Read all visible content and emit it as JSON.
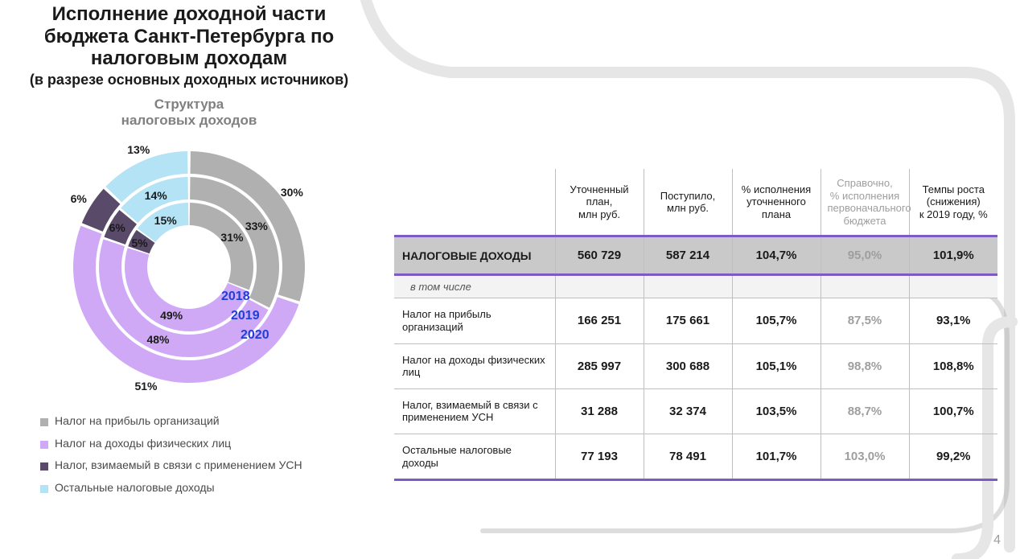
{
  "page_number": "4",
  "colors": {
    "profit": "#b0b0b0",
    "ndfl": "#cfa9f5",
    "usn": "#5a4a6a",
    "other": "#b3e3f5",
    "ring_label": "#1f3fd6",
    "bg_curve_light": "#e6e6e6",
    "bg_curve_dark": "#9e9e9e",
    "purple_accent": "#7c5cc4",
    "text_faded": "#9e9e9e"
  },
  "titles": {
    "main": "Исполнение доходной части бюджета Санкт-Петербурга по налоговым доходам",
    "sub": "(в разрезе основных доходных источников)",
    "chart": "Структура\nналоговых доходов"
  },
  "donut": {
    "type": "nested-donut",
    "rings": [
      {
        "year": "2018",
        "radius": 80,
        "thickness": 28,
        "segments": [
          {
            "key": "profit",
            "value": 31,
            "label": "31%"
          },
          {
            "key": "ndfl",
            "value": 49,
            "label": "49%"
          },
          {
            "key": "usn",
            "value": 5,
            "label": "5%"
          },
          {
            "key": "other",
            "value": 15,
            "label": "15%"
          }
        ]
      },
      {
        "year": "2019",
        "radius": 112,
        "thickness": 28,
        "segments": [
          {
            "key": "profit",
            "value": 33,
            "label": "33%"
          },
          {
            "key": "ndfl",
            "value": 48,
            "label": "48%"
          },
          {
            "key": "usn",
            "value": 6,
            "label": "6%"
          },
          {
            "key": "other",
            "value": 14,
            "label": "14%"
          }
        ]
      },
      {
        "year": "2020",
        "radius": 144,
        "thickness": 28,
        "segments": [
          {
            "key": "profit",
            "value": 30,
            "label": "30%"
          },
          {
            "key": "ndfl",
            "value": 51,
            "label": "51%"
          },
          {
            "key": "usn",
            "value": 6,
            "label": "6%"
          },
          {
            "key": "other",
            "value": 13,
            "label": "13%"
          }
        ]
      }
    ],
    "legend": [
      {
        "key": "profit",
        "label": "Налог на прибыль организаций"
      },
      {
        "key": "ndfl",
        "label": "Налог на доходы физических лиц"
      },
      {
        "key": "usn",
        "label": "Налог, взимаемый в связи с применением УСН"
      },
      {
        "key": "other",
        "label": "Остальные налоговые доходы"
      }
    ],
    "gap_deg": 1.5,
    "start_angle_deg": -90
  },
  "table": {
    "columns": [
      {
        "key": "name",
        "label": ""
      },
      {
        "key": "plan",
        "label": "Уточненный план,\nмлн руб."
      },
      {
        "key": "actual",
        "label": "Поступило,\nмлн руб."
      },
      {
        "key": "exec",
        "label": "% исполнения уточненного плана"
      },
      {
        "key": "ref",
        "label": "Справочно,\n% исполнения первоначального бюджета",
        "faded": true
      },
      {
        "key": "growth",
        "label": "Темпы роста (снижения)\nк 2019 году, %"
      }
    ],
    "total_row": {
      "name": "НАЛОГОВЫЕ ДОХОДЫ",
      "plan": "560 729",
      "actual": "587 214",
      "exec": "104,7%",
      "ref": "95,0%",
      "growth": "101,9%"
    },
    "sub_head": "в том числе",
    "rows": [
      {
        "name": "Налог на прибыль организаций",
        "plan": "166 251",
        "actual": "175 661",
        "exec": "105,7%",
        "ref": "87,5%",
        "growth": "93,1%"
      },
      {
        "name": "Налог на доходы физических лиц",
        "plan": "285 997",
        "actual": "300 688",
        "exec": "105,1%",
        "ref": "98,8%",
        "growth": "108,8%"
      },
      {
        "name": "Налог, взимаемый в связи с применением УСН",
        "plan": "31 288",
        "actual": "32 374",
        "exec": "103,5%",
        "ref": "88,7%",
        "growth": "100,7%"
      },
      {
        "name": "Остальные налоговые доходы",
        "plan": "77 193",
        "actual": "78 491",
        "exec": "101,7%",
        "ref": "103,0%",
        "growth": "99,2%"
      }
    ]
  }
}
